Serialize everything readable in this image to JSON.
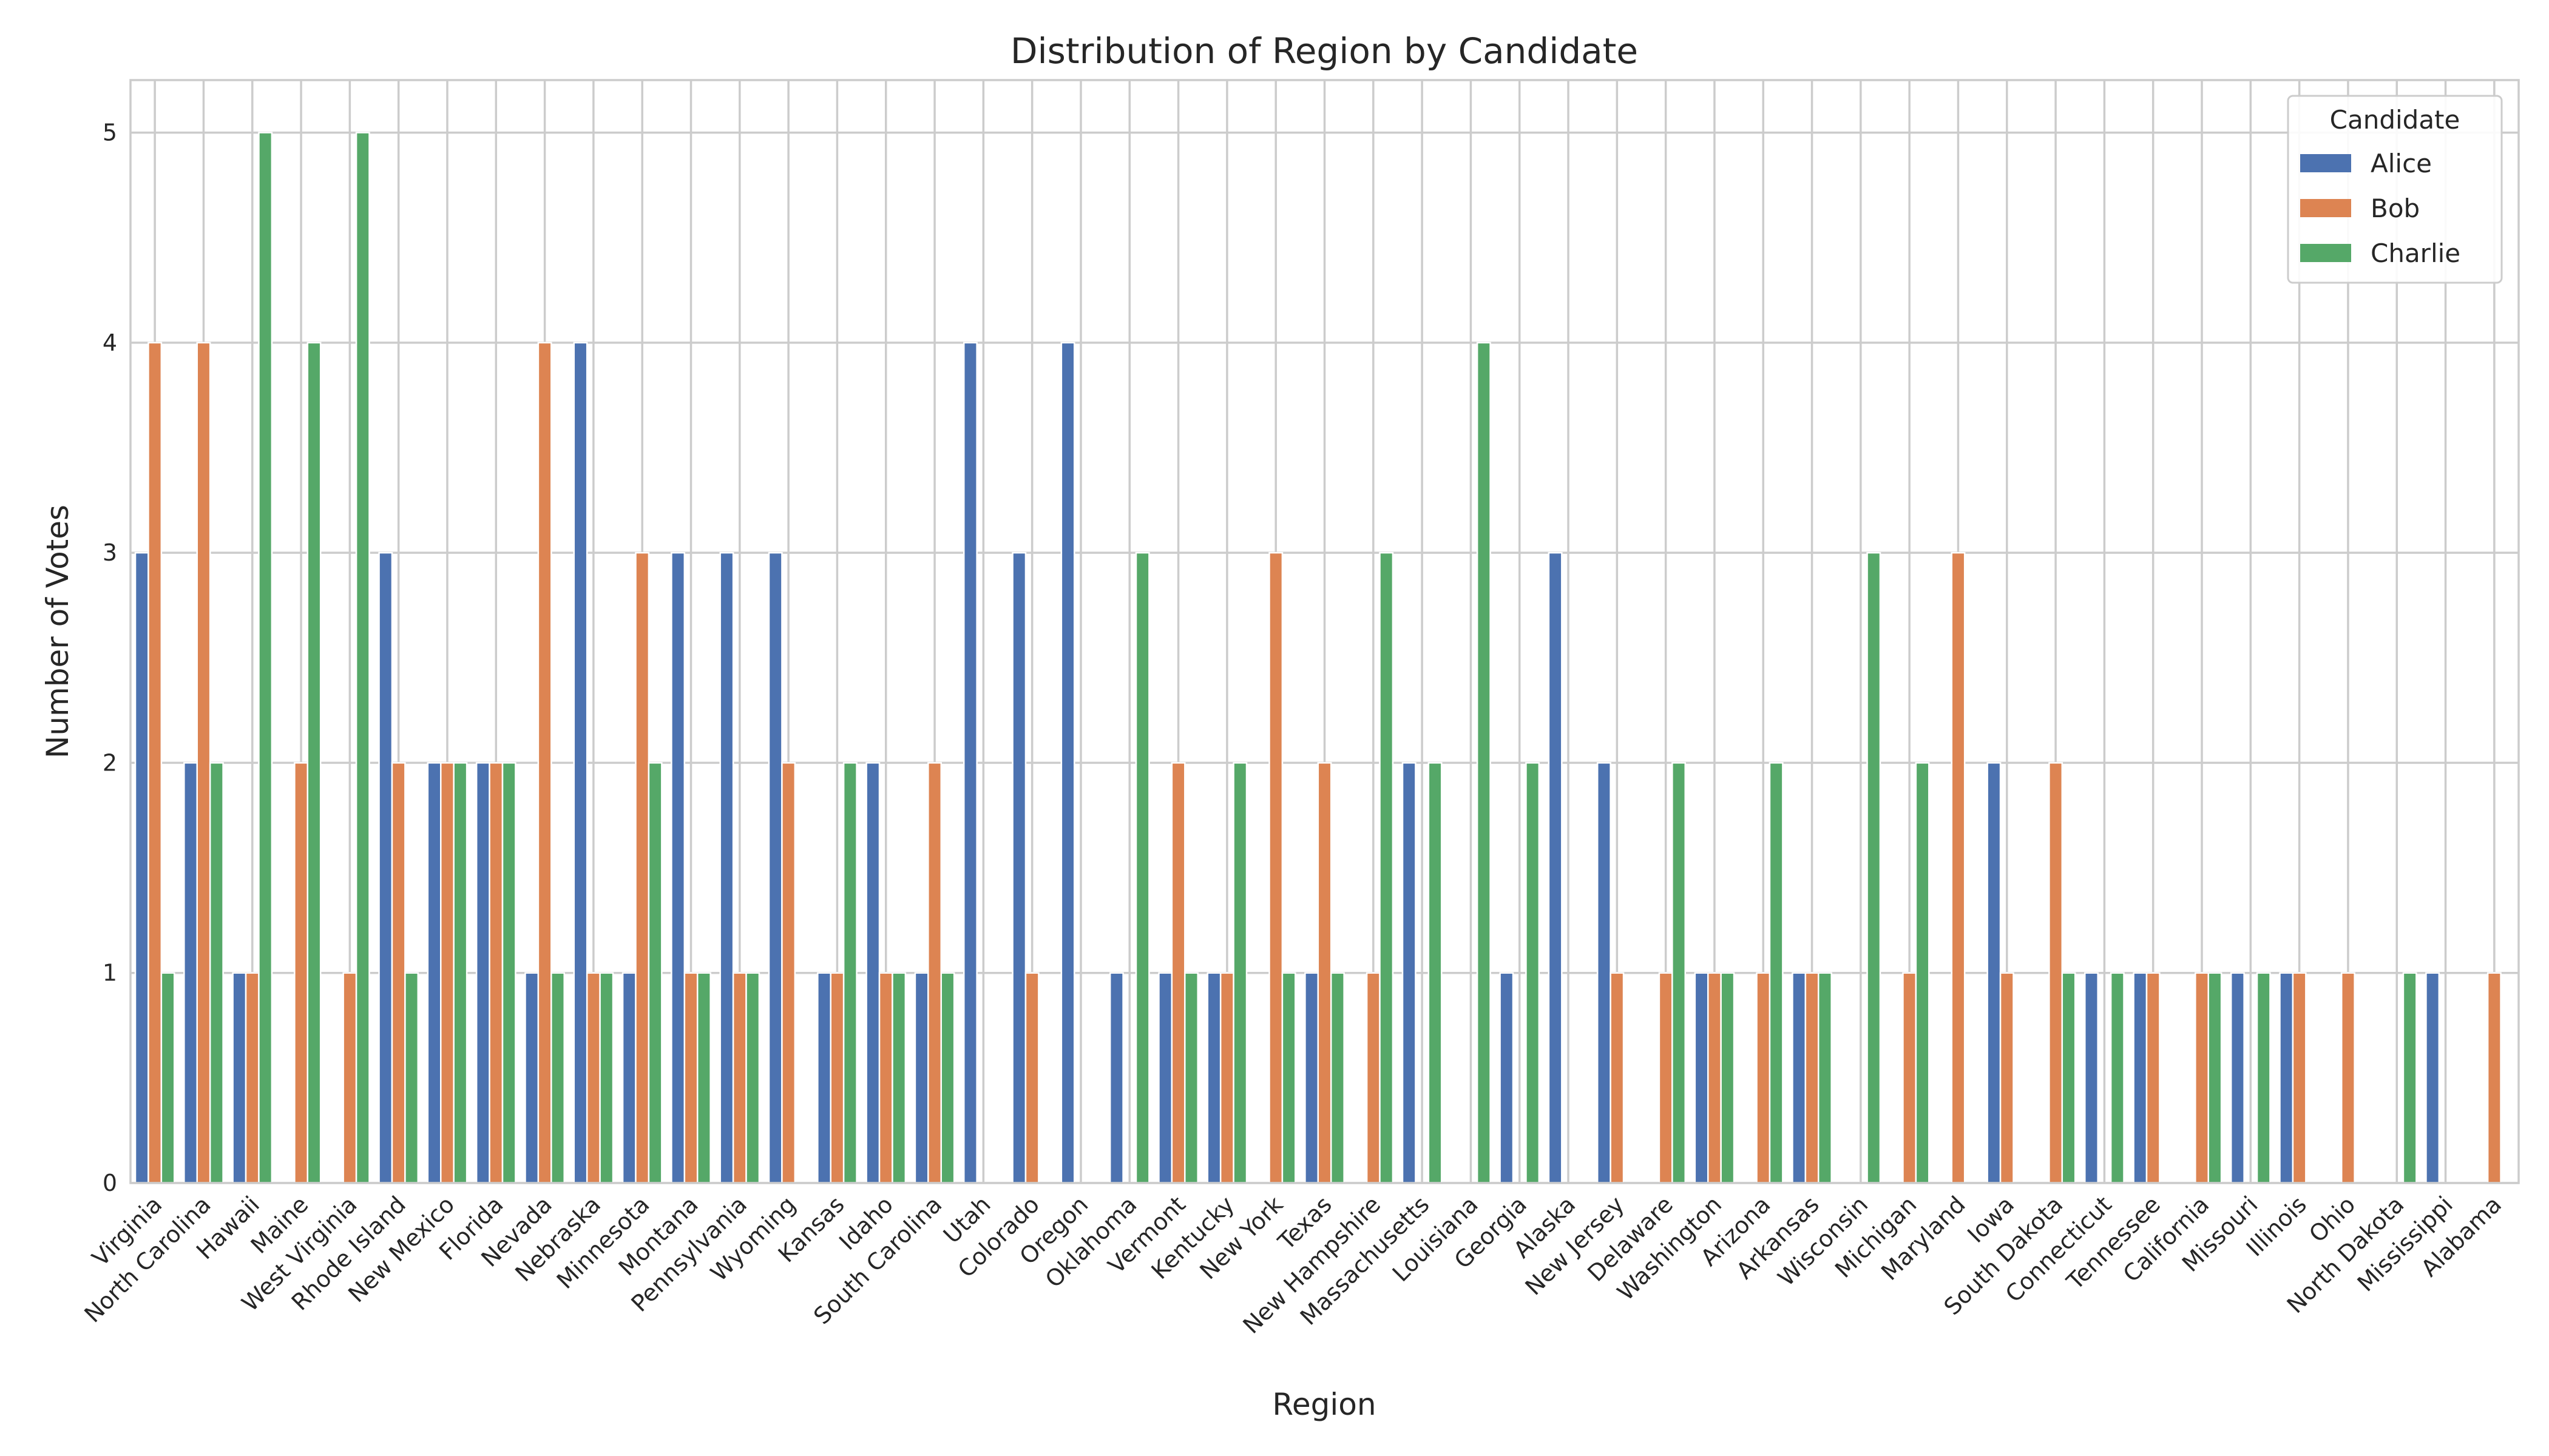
{
  "chart_data": {
    "type": "bar",
    "title": "Distribution of Region by Candidate",
    "xlabel": "Region",
    "ylabel": "Number of Votes",
    "ylim": [
      0,
      5.25
    ],
    "yticks": [
      0,
      1,
      2,
      3,
      4,
      5
    ],
    "grid": true,
    "legend": {
      "title": "Candidate",
      "placement": "top-right"
    },
    "categories": [
      "Virginia",
      "North Carolina",
      "Hawaii",
      "Maine",
      "West Virginia",
      "Rhode Island",
      "New Mexico",
      "Florida",
      "Nevada",
      "Nebraska",
      "Minnesota",
      "Montana",
      "Pennsylvania",
      "Wyoming",
      "Kansas",
      "Idaho",
      "South Carolina",
      "Utah",
      "Colorado",
      "Oregon",
      "Oklahoma",
      "Vermont",
      "Kentucky",
      "New York",
      "Texas",
      "New Hampshire",
      "Massachusetts",
      "Louisiana",
      "Georgia",
      "Alaska",
      "New Jersey",
      "Delaware",
      "Washington",
      "Arizona",
      "Arkansas",
      "Wisconsin",
      "Michigan",
      "Maryland",
      "Iowa",
      "South Dakota",
      "Connecticut",
      "Tennessee",
      "California",
      "Missouri",
      "Illinois",
      "Ohio",
      "North Dakota",
      "Mississippi",
      "Alabama"
    ],
    "series": [
      {
        "name": "Alice",
        "color": "#4c72b0",
        "values": [
          3,
          2,
          1,
          0,
          0,
          3,
          2,
          2,
          1,
          4,
          1,
          3,
          3,
          3,
          1,
          2,
          1,
          4,
          3,
          4,
          1,
          1,
          1,
          0,
          1,
          0,
          2,
          0,
          1,
          3,
          2,
          0,
          1,
          0,
          1,
          0,
          0,
          0,
          2,
          0,
          1,
          1,
          0,
          1,
          1,
          0,
          0,
          1,
          0
        ]
      },
      {
        "name": "Bob",
        "color": "#dd8452",
        "values": [
          4,
          4,
          1,
          2,
          1,
          2,
          2,
          2,
          4,
          1,
          3,
          1,
          1,
          2,
          1,
          1,
          2,
          0,
          1,
          0,
          0,
          2,
          1,
          3,
          2,
          1,
          0,
          0,
          0,
          0,
          1,
          1,
          1,
          1,
          1,
          0,
          1,
          3,
          1,
          2,
          0,
          1,
          1,
          0,
          1,
          1,
          0,
          0,
          1
        ]
      },
      {
        "name": "Charlie",
        "color": "#55a868",
        "values": [
          1,
          2,
          5,
          4,
          5,
          1,
          2,
          2,
          1,
          1,
          2,
          1,
          1,
          0,
          2,
          1,
          1,
          0,
          0,
          0,
          3,
          1,
          2,
          1,
          1,
          3,
          2,
          4,
          2,
          0,
          0,
          2,
          1,
          2,
          1,
          3,
          2,
          0,
          0,
          1,
          1,
          0,
          1,
          1,
          0,
          0,
          1,
          0,
          0
        ]
      }
    ]
  }
}
